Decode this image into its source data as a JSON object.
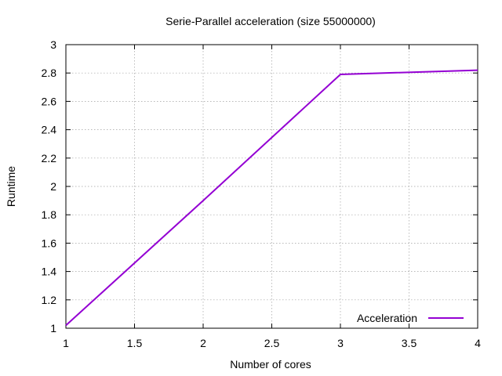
{
  "chart_data": {
    "type": "line",
    "title": "Serie-Parallel acceleration (size 55000000)",
    "xlabel": "Number of cores",
    "ylabel": "Runtime",
    "xlim": [
      1,
      4
    ],
    "ylim": [
      1,
      3
    ],
    "xticks": [
      1,
      1.5,
      2,
      2.5,
      3,
      3.5,
      4
    ],
    "xtick_labels": [
      "1",
      "1.5",
      "2",
      "2.5",
      "3",
      "3.5",
      "4"
    ],
    "yticks": [
      1,
      1.2,
      1.4,
      1.6,
      1.8,
      2,
      2.2,
      2.4,
      2.6,
      2.8,
      3
    ],
    "ytick_labels": [
      "1",
      "1.2",
      "1.4",
      "1.6",
      "1.8",
      "2",
      "2.2",
      "2.4",
      "2.6",
      "2.8",
      "3"
    ],
    "grid": true,
    "legend_position": "bottom-right",
    "series": [
      {
        "name": "Acceleration",
        "color": "#9400d3",
        "x": [
          1,
          2,
          3,
          4
        ],
        "y": [
          1.02,
          1.9,
          2.79,
          2.82
        ]
      }
    ]
  }
}
